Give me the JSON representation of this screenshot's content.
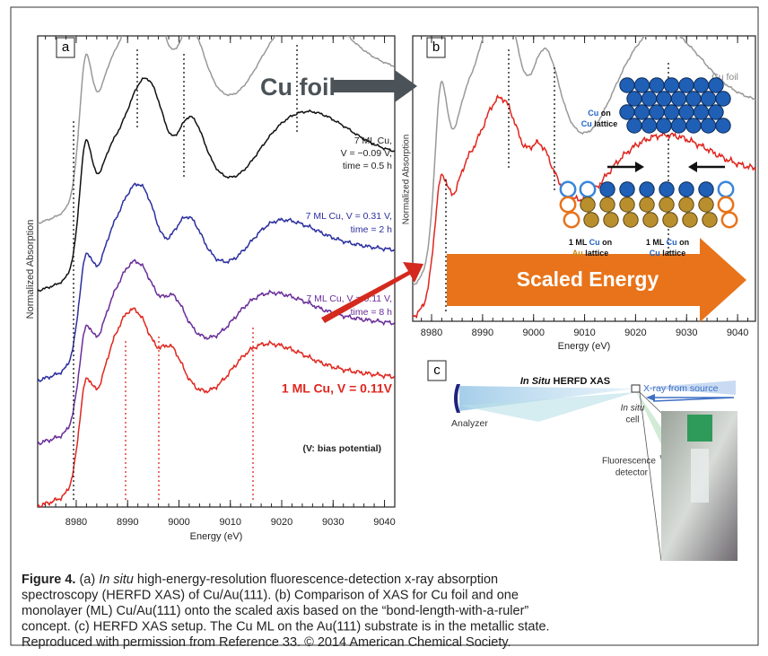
{
  "panel_a": {
    "label": "a",
    "y_label": "Normalized Absorption",
    "x_label": "Energy (eV)",
    "xlim": [
      8972.5,
      9042
    ],
    "xticks": [
      8980,
      8990,
      9000,
      9010,
      9020,
      9030,
      9040
    ],
    "black_note": [
      "7 ML Cu,",
      "V = −0.09 V,",
      "time = 0.5 h"
    ],
    "blue_note": [
      "7 ML Cu, V = 0.31 V,",
      "time = 2 h"
    ],
    "purple_note": [
      "7 ML Cu, V = 0.11 V,",
      "time = 8 h"
    ],
    "red_note": "1 ML Cu, V = 0.11V",
    "bias_note": "(V: bias potential)"
  },
  "panel_b": {
    "label": "b",
    "y_label": "Normalized Absorption",
    "x_label": "Energy (eV)",
    "xlim": [
      8976.3,
      9043.5
    ],
    "xticks": [
      8980,
      8990,
      9000,
      9010,
      9020,
      9030,
      9040
    ],
    "foil_label": "Cu foil",
    "arrow_text": "Cu foil",
    "scaled_energy": "Scaled Energy",
    "cu_on_cu": [
      [
        "Cu",
        " on"
      ],
      [
        "Cu",
        " lattice"
      ]
    ],
    "ml_on_au": [
      [
        "1 ML ",
        "Cu",
        " on"
      ],
      [
        "Au",
        " lattice"
      ]
    ],
    "ml_on_cu": [
      [
        "1 ML ",
        "Cu",
        " on"
      ],
      [
        "Cu",
        " lattice"
      ]
    ]
  },
  "panel_c": {
    "label": "c",
    "title": [
      "In Situ",
      " HERFD XAS"
    ],
    "xray": "X-ray from source",
    "analyzer": "Analyzer",
    "cell": [
      "In situ",
      "cell"
    ],
    "detector": [
      "Fluorescence",
      "detector"
    ]
  },
  "caption": {
    "label": "Figure 4.",
    "lines": [
      [
        "(a) ",
        "In situ",
        " high-energy-resolution fluorescence-detection x-ray absorption"
      ],
      [
        "spectroscopy (HERFD XAS) of Cu/Au(111). (b) Comparison of XAS for Cu foil and one"
      ],
      [
        "monolayer (ML) Cu/Au(111) onto the scaled axis based on the “bond-length-with-a-ruler”"
      ],
      [
        "concept. (c) HERFD XAS setup. The Cu ML on the Au(111) substrate is in the metallic state."
      ],
      [
        "Reproduced with permission from Reference 33. © 2014 American Chemical Society."
      ]
    ]
  }
}
